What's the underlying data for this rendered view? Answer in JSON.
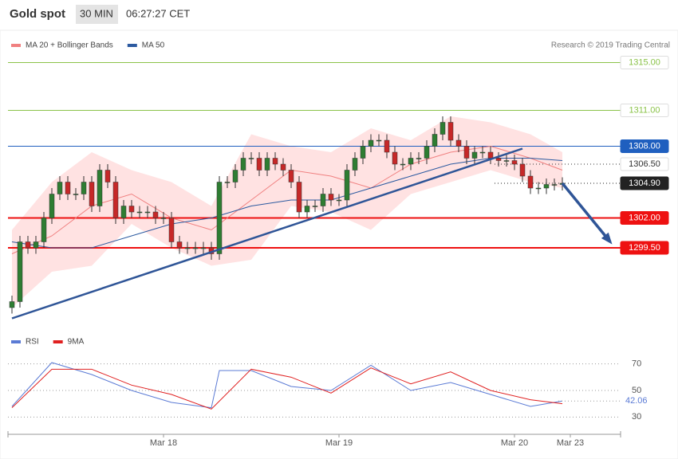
{
  "header": {
    "title": "Gold spot",
    "interval": "30 MIN",
    "time": "06:27:27 CET"
  },
  "chart_data": [
    {
      "type": "candlestick",
      "source": "Research © 2019 Trading Central",
      "xlim": [
        -0.5,
        76.3
      ],
      "ylim": [
        1292.9,
        1317.7
      ],
      "up_color": "#2e7d32",
      "down_color": "#c62828",
      "open": [
        1294.5,
        1295,
        1300,
        1299.5,
        1300,
        1302,
        1304,
        1305,
        1304,
        1304,
        1305,
        1303,
        1306,
        1305,
        1302,
        1303,
        1302.5,
        1302.5,
        1302.5,
        1302,
        1302,
        1300,
        1299.5,
        1299.5,
        1299.5,
        1299.5,
        1299,
        1305,
        1305,
        1306,
        1307,
        1307,
        1306,
        1307,
        1306.5,
        1306,
        1305,
        1302.5,
        1303,
        1303,
        1304,
        1303.5,
        1303.5,
        1306,
        1307,
        1308,
        1308.5,
        1308.5,
        1307.5,
        1306.5,
        1306.5,
        1307,
        1307,
        1308,
        1309,
        1310,
        1308.5,
        1308,
        1307,
        1307.5,
        1307.5,
        1307,
        1306.8,
        1306.8,
        1306.5,
        1305.5,
        1304.5,
        1304.5,
        1304.8,
        1304.8
      ],
      "high": [
        1295.5,
        1300.5,
        1300.5,
        1300.5,
        1302.5,
        1304.5,
        1305.5,
        1305.5,
        1304.5,
        1305.5,
        1305.5,
        1306.5,
        1306.5,
        1305.5,
        1303.5,
        1303.5,
        1303,
        1303,
        1303,
        1302.5,
        1302.5,
        1300.5,
        1300,
        1300,
        1300,
        1300,
        1305.5,
        1305.5,
        1306.5,
        1307.5,
        1307.5,
        1307.5,
        1307.5,
        1307.5,
        1307,
        1306.5,
        1305.5,
        1303.5,
        1303.5,
        1304.5,
        1304.5,
        1304,
        1306.5,
        1307.5,
        1308.5,
        1309,
        1309,
        1309,
        1308,
        1307,
        1307.5,
        1307.5,
        1308.5,
        1309.5,
        1310.5,
        1310.5,
        1309,
        1308.5,
        1308,
        1308,
        1308,
        1307.5,
        1307.3,
        1307.3,
        1307,
        1306,
        1305,
        1305.3,
        1305.3,
        1305.4
      ],
      "low": [
        1294,
        1294.5,
        1299,
        1299,
        1299.5,
        1301.5,
        1303.5,
        1303.5,
        1303.5,
        1303.5,
        1302.5,
        1302.5,
        1304.5,
        1301.5,
        1301.5,
        1302,
        1302,
        1302,
        1301.5,
        1301.5,
        1299.5,
        1299,
        1299,
        1299,
        1299,
        1298.5,
        1298.5,
        1304.5,
        1304.5,
        1305.5,
        1306.5,
        1305.5,
        1305.5,
        1306,
        1305.5,
        1304.5,
        1302,
        1302,
        1302.5,
        1302.5,
        1303,
        1303,
        1303,
        1305.5,
        1306.5,
        1307.5,
        1308,
        1307,
        1306,
        1306,
        1306,
        1306.5,
        1306.5,
        1307.5,
        1308.5,
        1308,
        1307.5,
        1306.5,
        1306.5,
        1307,
        1306.5,
        1306.3,
        1306.3,
        1306,
        1305,
        1304,
        1304,
        1304,
        1304.3,
        1304.3
      ],
      "close": [
        1295,
        1300,
        1299.5,
        1300,
        1302,
        1304,
        1305,
        1304,
        1304,
        1305,
        1303,
        1306,
        1305,
        1302,
        1303,
        1302.5,
        1302.5,
        1302.5,
        1302,
        1302,
        1300,
        1299.5,
        1299.5,
        1299.5,
        1299.5,
        1299,
        1305,
        1305,
        1306,
        1307,
        1307,
        1306,
        1307,
        1306.5,
        1306,
        1305,
        1302.5,
        1303,
        1303,
        1304,
        1303.5,
        1303.5,
        1306,
        1307,
        1308,
        1308.5,
        1308.5,
        1307.5,
        1306.5,
        1306.5,
        1307,
        1307,
        1308,
        1309,
        1310,
        1308.5,
        1308,
        1307,
        1307.5,
        1307.5,
        1307,
        1306.8,
        1306.8,
        1306.5,
        1305.5,
        1304.5,
        1304.5,
        1304.8,
        1304.8,
        1304.9
      ],
      "bands": {
        "color": "#ffd6d6",
        "x": [
          0,
          5,
          10,
          15,
          20,
          25,
          30,
          35,
          40,
          45,
          50,
          55,
          60,
          65,
          69
        ],
        "upper": [
          1301,
          1305,
          1307.5,
          1306,
          1305,
          1303,
          1309,
          1308,
          1307.5,
          1309.5,
          1308.5,
          1310.5,
          1310,
          1309,
          1307.5
        ],
        "lower": [
          1294.5,
          1297.5,
          1298,
          1301.5,
          1299.5,
          1298,
          1298.5,
          1303,
          1302.5,
          1301,
          1304,
          1305,
          1306,
          1305,
          1304.5
        ]
      },
      "series": [
        {
          "name": "MA 20 + Bollinger Bands",
          "color": "#f08080",
          "x": [
            0,
            5,
            10,
            15,
            20,
            25,
            30,
            35,
            40,
            45,
            50,
            55,
            60,
            65,
            69
          ],
          "values": [
            1299,
            1300.5,
            1303,
            1304,
            1302,
            1301,
            1303.5,
            1306,
            1305.5,
            1304.5,
            1306.5,
            1307.5,
            1308,
            1307,
            1306
          ]
        },
        {
          "name": "MA 50",
          "color": "#2c5aa0",
          "x": [
            0,
            5,
            10,
            15,
            20,
            25,
            30,
            35,
            40,
            45,
            50,
            55,
            60,
            65,
            69
          ],
          "values": [
            1300,
            1299.5,
            1299.5,
            1300.5,
            1301.5,
            1302,
            1303,
            1303.5,
            1303.5,
            1304.5,
            1305.5,
            1306.5,
            1307,
            1307,
            1306.8
          ]
        }
      ],
      "trendline": {
        "color": "#2f5597",
        "x": [
          0,
          64
        ],
        "y": [
          1293.6,
          1307.8
        ]
      },
      "arrow": {
        "color": "#2f5597",
        "x": [
          69,
          75
        ],
        "y": [
          1304.9,
          1300
        ]
      },
      "levels": [
        {
          "value": 1315,
          "label": "1315.00",
          "color": "#8bc34a",
          "style": "solid",
          "box": "outline"
        },
        {
          "value": 1311,
          "label": "1311.00",
          "color": "#8bc34a",
          "style": "solid",
          "box": "outline"
        },
        {
          "value": 1308,
          "label": "1308.00",
          "color": "#1f5fbf",
          "style": "solid",
          "box": "filled"
        },
        {
          "value": 1306.5,
          "label": "1306.50",
          "color": "#333333",
          "style": "dotted",
          "box": "outline"
        },
        {
          "value": 1304.9,
          "label": "1304.90",
          "color": "#222222",
          "style": "dotted",
          "box": "filled"
        },
        {
          "value": 1302,
          "label": "1302.00",
          "color": "#ee1111",
          "style": "thick",
          "box": "filled"
        },
        {
          "value": 1299.5,
          "label": "1299.50",
          "color": "#ee1111",
          "style": "thick",
          "box": "filled"
        }
      ]
    },
    {
      "type": "line",
      "xlim": [
        -0.5,
        76.3
      ],
      "ylim": [
        20,
        92
      ],
      "yticks": [
        70,
        50,
        30
      ],
      "xticks": [
        {
          "value": 19,
          "label": "Mar 18"
        },
        {
          "value": 41,
          "label": "Mar 19"
        },
        {
          "value": 63,
          "label": "Mar 20"
        },
        {
          "value": 70,
          "label": "Mar 23"
        }
      ],
      "last_value": 42.06,
      "series": [
        {
          "name": "RSI",
          "color": "#5b7bd5",
          "x": [
            0,
            5,
            10,
            15,
            20,
            25,
            26,
            30,
            35,
            40,
            45,
            50,
            55,
            60,
            65,
            69
          ],
          "values": [
            38,
            71,
            62,
            50,
            41,
            37,
            65,
            65,
            53,
            50,
            69,
            50,
            56,
            47,
            38,
            42.06
          ]
        },
        {
          "name": "9MA",
          "color": "#e02020",
          "x": [
            0,
            5,
            10,
            15,
            20,
            25,
            30,
            35,
            40,
            45,
            50,
            55,
            60,
            65,
            69
          ],
          "values": [
            37,
            66,
            66,
            54,
            47,
            36,
            66,
            60,
            48,
            67,
            55,
            64,
            50,
            43,
            40
          ]
        }
      ]
    }
  ]
}
